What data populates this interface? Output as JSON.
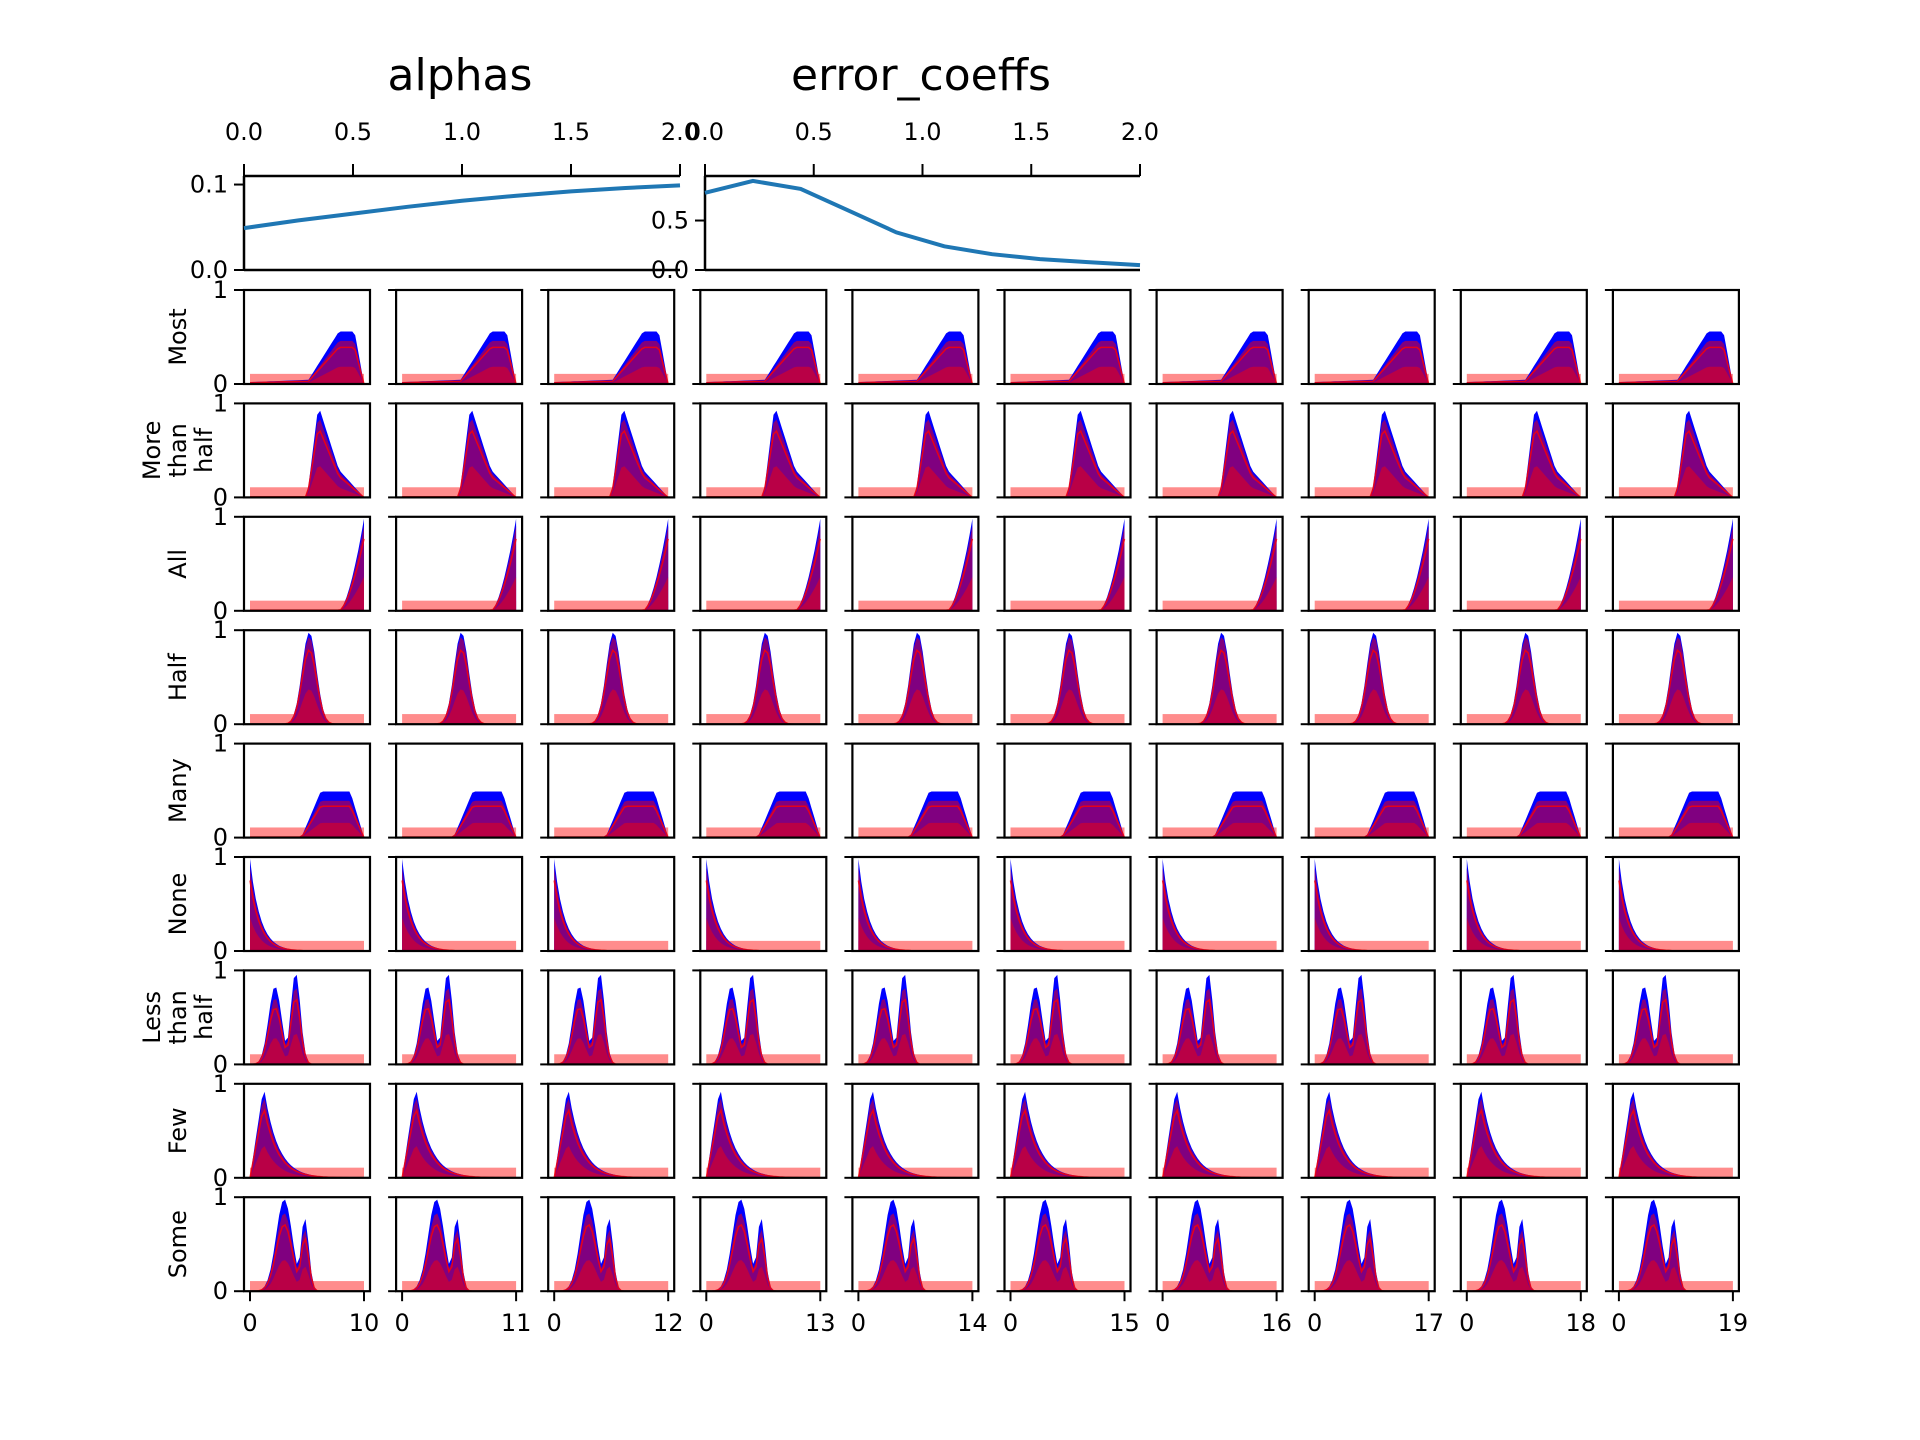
{
  "figure": {
    "background": "#ffffff",
    "colors": {
      "line": "#1f77b4",
      "band": "#0000ff",
      "mean_area": "#800080",
      "prior": "#ff0000"
    }
  },
  "chart_data": [
    {
      "type": "line",
      "title": "alphas",
      "xlim": [
        0,
        2.0
      ],
      "ylim": [
        0,
        0.11
      ],
      "xticks": [
        "0.0",
        "0.5",
        "1.0",
        "1.5",
        "2.0"
      ],
      "yticks": [
        "0.0",
        "0.1"
      ],
      "x": [
        0,
        0.25,
        0.5,
        0.75,
        1.0,
        1.25,
        1.5,
        1.75,
        2.0
      ],
      "values": [
        0.049,
        0.058,
        0.066,
        0.074,
        0.081,
        0.087,
        0.092,
        0.096,
        0.099
      ],
      "grid": false
    },
    {
      "type": "line",
      "title": "error_coeffs",
      "xlim": [
        0,
        2.0
      ],
      "ylim": [
        0,
        0.95
      ],
      "xticks": [
        "0.0",
        "0.5",
        "1.0",
        "1.5",
        "2.0"
      ],
      "yticks": [
        "0.0",
        "0.5"
      ],
      "x": [
        0,
        0.22,
        0.44,
        0.66,
        0.88,
        1.1,
        1.32,
        1.54,
        1.76,
        2.0
      ],
      "values": [
        0.78,
        0.9,
        0.82,
        0.6,
        0.38,
        0.24,
        0.16,
        0.11,
        0.08,
        0.05
      ],
      "grid": false
    },
    {
      "type": "area",
      "yticks": [
        "0",
        "1"
      ],
      "ylim": [
        0,
        1
      ],
      "rows": [
        {
          "label": "Most",
          "kind": "ramp",
          "params": {
            "start": 0.5,
            "peak": 0.78,
            "end": 0.92,
            "level": 0.55
          }
        },
        {
          "label": "More than half",
          "kind": "spike_tail",
          "params": {
            "peak": 0.6,
            "tail": 0.3
          }
        },
        {
          "label": "All",
          "kind": "rise_end",
          "params": {}
        },
        {
          "label": "Half",
          "kind": "spike",
          "params": {
            "peak": 0.52
          }
        },
        {
          "label": "Many",
          "kind": "ramp_plateau",
          "params": {
            "start": 0.45,
            "end": 0.88,
            "level": 0.5
          }
        },
        {
          "label": "None",
          "kind": "decay",
          "params": {}
        },
        {
          "label": "Less than half",
          "kind": "double_spike",
          "params": {
            "p1": 0.22,
            "p2": 0.4
          }
        },
        {
          "label": "Few",
          "kind": "early_spike",
          "params": {
            "peak": 0.12
          }
        },
        {
          "label": "Some",
          "kind": "early_double",
          "params": {
            "p1": 0.3,
            "p2": 0.48
          }
        }
      ],
      "columns": [
        {
          "xmax": 10,
          "xticks": [
            "0",
            "10"
          ]
        },
        {
          "xmax": 11,
          "xticks": [
            "0",
            "11"
          ]
        },
        {
          "xmax": 12,
          "xticks": [
            "0",
            "12"
          ]
        },
        {
          "xmax": 13,
          "xticks": [
            "0",
            "13"
          ]
        },
        {
          "xmax": 14,
          "xticks": [
            "0",
            "14"
          ]
        },
        {
          "xmax": 15,
          "xticks": [
            "0",
            "15"
          ]
        },
        {
          "xmax": 16,
          "xticks": [
            "0",
            "16"
          ]
        },
        {
          "xmax": 17,
          "xticks": [
            "0",
            "17"
          ]
        },
        {
          "xmax": 18,
          "xticks": [
            "0",
            "18"
          ]
        },
        {
          "xmax": 19,
          "xticks": [
            "0",
            "19"
          ]
        }
      ]
    }
  ]
}
